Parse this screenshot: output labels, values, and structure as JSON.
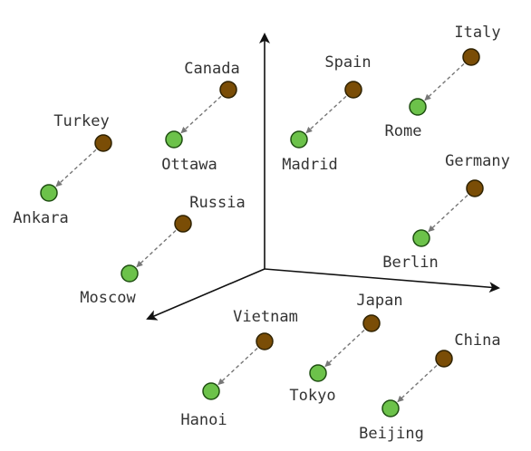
{
  "colors": {
    "country_dot": "#7a4d06",
    "capital_dot": "#6cc24a",
    "arrow": "#777777",
    "axis": "#111111",
    "text": "#333333"
  },
  "pairs": [
    {
      "country": "Turkey",
      "capital": "Ankara"
    },
    {
      "country": "Canada",
      "capital": "Ottawa"
    },
    {
      "country": "Spain",
      "capital": "Madrid"
    },
    {
      "country": "Italy",
      "capital": "Rome"
    },
    {
      "country": "Russia",
      "capital": "Moscow"
    },
    {
      "country": "Germany",
      "capital": "Berlin"
    },
    {
      "country": "Vietnam",
      "capital": "Hanoi"
    },
    {
      "country": "Japan",
      "capital": "Tokyo"
    },
    {
      "country": "China",
      "capital": "Beijing"
    }
  ]
}
